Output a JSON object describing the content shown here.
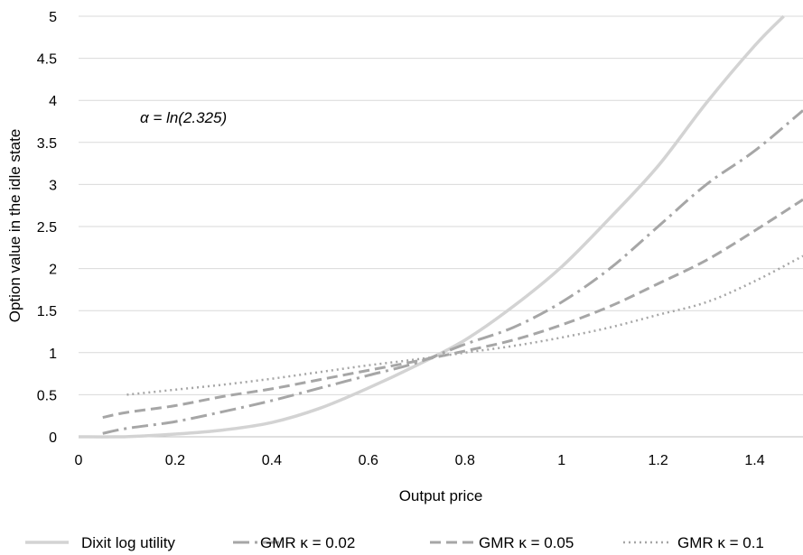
{
  "chart_data": {
    "type": "line",
    "title": "",
    "xlabel": "Output price",
    "ylabel": "Option value in the idle state",
    "xlim": [
      0,
      1.5
    ],
    "ylim": [
      0,
      5
    ],
    "x_ticks": [
      "0",
      "0.2",
      "0.4",
      "0.6",
      "0.8",
      "1",
      "1.2",
      "1.4"
    ],
    "y_ticks": [
      "0",
      "0.5",
      "1",
      "1.5",
      "2",
      "2.5",
      "3",
      "3.5",
      "4",
      "4.5",
      "5"
    ],
    "grid": "horizontal",
    "legend_position": "bottom",
    "annotation": "α = ln(2.325)",
    "series": [
      {
        "name": "Dixit log utility",
        "color": "#d3d3d3",
        "dash": "solid",
        "x": [
          0,
          0.1,
          0.2,
          0.3,
          0.4,
          0.5,
          0.6,
          0.7,
          0.8,
          0.9,
          1.0,
          1.1,
          1.2,
          1.3,
          1.4,
          1.46
        ],
        "y": [
          0,
          0.002,
          0.032,
          0.081,
          0.17,
          0.34,
          0.58,
          0.85,
          1.15,
          1.55,
          2.02,
          2.6,
          3.22,
          3.97,
          4.65,
          5.0
        ]
      },
      {
        "name": "GMR κ = 0.02",
        "color": "#a6a6a6",
        "dash": "dashdot",
        "x": [
          0.05,
          0.1,
          0.2,
          0.3,
          0.4,
          0.5,
          0.6,
          0.7,
          0.8,
          0.9,
          1.0,
          1.1,
          1.2,
          1.3,
          1.4,
          1.5
        ],
        "y": [
          0.04,
          0.1,
          0.18,
          0.3,
          0.43,
          0.58,
          0.73,
          0.88,
          1.1,
          1.3,
          1.6,
          2.0,
          2.5,
          3.0,
          3.4,
          3.88
        ]
      },
      {
        "name": "GMR κ = 0.05",
        "color": "#a6a6a6",
        "dash": "dashed",
        "x": [
          0.05,
          0.1,
          0.2,
          0.3,
          0.4,
          0.5,
          0.6,
          0.7,
          0.8,
          0.9,
          1.0,
          1.1,
          1.2,
          1.3,
          1.4,
          1.5
        ],
        "y": [
          0.23,
          0.29,
          0.37,
          0.48,
          0.57,
          0.68,
          0.79,
          0.9,
          1.02,
          1.15,
          1.33,
          1.55,
          1.82,
          2.1,
          2.45,
          2.82
        ]
      },
      {
        "name": "GMR κ =  0.1",
        "color": "#a6a6a6",
        "dash": "dotted",
        "x": [
          0.1,
          0.2,
          0.3,
          0.4,
          0.5,
          0.6,
          0.7,
          0.8,
          0.9,
          1.0,
          1.1,
          1.2,
          1.3,
          1.4,
          1.5
        ],
        "y": [
          0.5,
          0.56,
          0.62,
          0.69,
          0.77,
          0.85,
          0.92,
          1.0,
          1.08,
          1.18,
          1.3,
          1.45,
          1.6,
          1.85,
          2.15
        ]
      }
    ]
  }
}
